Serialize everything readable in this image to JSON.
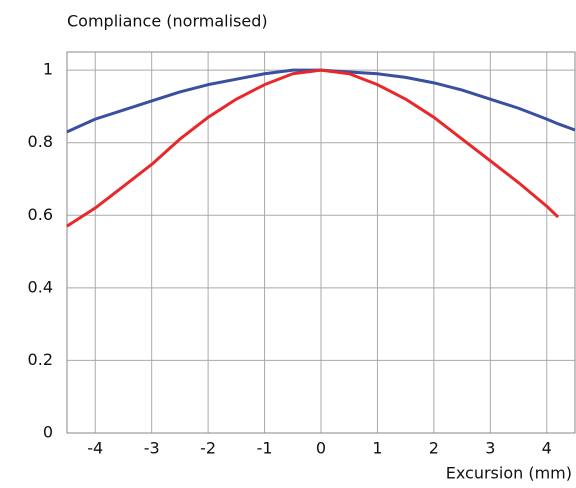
{
  "chart_data": {
    "type": "line",
    "title": "Compliance (normalised)",
    "x_label": "Excursion (mm)",
    "x": [
      -4.5,
      -4,
      -3.5,
      -3,
      -2.5,
      -2,
      -1.5,
      -1,
      -0.5,
      0,
      0.5,
      1,
      1.5,
      2,
      2.5,
      3,
      3.5,
      4,
      4.2,
      4.5
    ],
    "series": [
      {
        "name": "blue",
        "color": "#3a4fa0",
        "values": [
          0.83,
          0.865,
          0.89,
          0.915,
          0.94,
          0.96,
          0.975,
          0.99,
          1.0,
          1.0,
          0.995,
          0.99,
          0.98,
          0.965,
          0.945,
          0.92,
          0.895,
          0.865,
          0.852,
          0.835
        ]
      },
      {
        "name": "red",
        "color": "#e8282a",
        "values": [
          0.57,
          0.62,
          0.68,
          0.74,
          0.81,
          0.87,
          0.92,
          0.96,
          0.99,
          1.0,
          0.99,
          0.96,
          0.92,
          0.87,
          0.81,
          0.75,
          0.69,
          0.625,
          0.595,
          null
        ]
      }
    ],
    "xlim": [
      -4.5,
      4.5
    ],
    "ylim": [
      0,
      1.05
    ],
    "xticks": [
      -4,
      -3,
      -2,
      -1,
      0,
      1,
      2,
      3,
      4
    ],
    "yticks": [
      0,
      0.2,
      0.4,
      0.6,
      0.8,
      1
    ],
    "grid": true
  }
}
